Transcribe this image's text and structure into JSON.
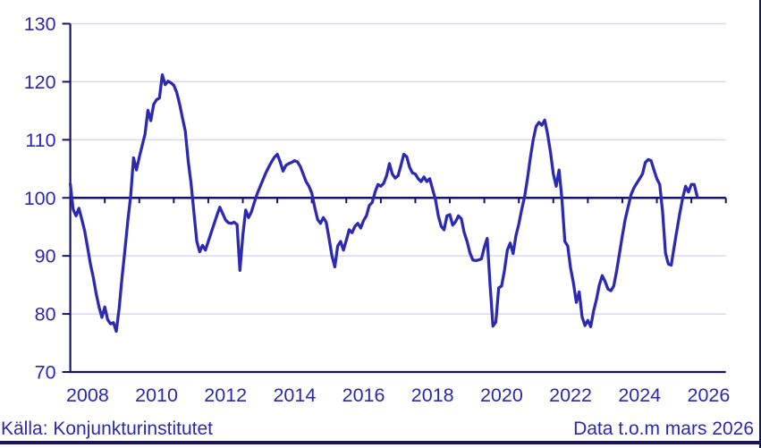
{
  "footer": {
    "source": "Källa: Konjunkturinstitutet",
    "note": "Data t.o.m mars 2026"
  },
  "chart_data": {
    "type": "line",
    "title": "",
    "xlabel": "",
    "ylabel": "",
    "grid": true,
    "legend": "none",
    "ylim": [
      70,
      130
    ],
    "y_ticks": [
      70,
      80,
      90,
      100,
      110,
      120,
      130
    ],
    "x_range_years": [
      2008,
      2027
    ],
    "x_tick_label_years": [
      2008,
      2010,
      2012,
      2014,
      2016,
      2018,
      2020,
      2022,
      2024,
      2026
    ],
    "reference_line": 100,
    "x_start": "2008-01",
    "x_step": "1 month",
    "x_end": "2026-03",
    "colors": {
      "line": "#2d2ab2",
      "axis": "#17136e",
      "reference_line": "#17136e",
      "grid": "#d8d8f0",
      "text": "#2b28b0",
      "bottom_bar": "#171366"
    },
    "series": [
      {
        "name": "",
        "values": [
          102.4,
          98.0,
          96.9,
          98.2,
          96.3,
          94.3,
          91.5,
          88.6,
          86.3,
          83.5,
          81.2,
          79.4,
          81.2,
          79.0,
          78.3,
          78.5,
          77.0,
          81.0,
          86.3,
          91.0,
          96.0,
          100.3,
          106.9,
          104.8,
          107.0,
          109.0,
          111.0,
          115.1,
          113.3,
          116.1,
          116.9,
          117.2,
          121.2,
          119.5,
          120.1,
          119.8,
          119.4,
          118.2,
          116.2,
          113.8,
          111.5,
          106.4,
          102.5,
          97.5,
          92.5,
          90.7,
          91.8,
          91.0,
          92.5,
          94.0,
          95.5,
          97.0,
          98.4,
          97.3,
          96.2,
          95.7,
          95.6,
          95.8,
          95.4,
          87.5,
          93.5,
          97.9,
          96.6,
          97.6,
          99.2,
          100.7,
          101.9,
          103.1,
          104.3,
          105.3,
          106.2,
          107.0,
          107.5,
          106.2,
          104.6,
          105.6,
          105.9,
          106.1,
          106.4,
          106.2,
          105.4,
          104.1,
          102.8,
          102.0,
          100.8,
          98.4,
          96.3,
          95.6,
          96.6,
          95.8,
          93.0,
          90.0,
          88.1,
          91.7,
          92.5,
          91.0,
          92.7,
          94.5,
          94.0,
          95.1,
          95.6,
          94.8,
          96.1,
          96.9,
          98.7,
          99.2,
          101.0,
          102.3,
          102.0,
          102.5,
          103.8,
          105.9,
          104.1,
          103.4,
          103.8,
          105.6,
          107.5,
          107.1,
          105.3,
          104.3,
          104.1,
          103.3,
          102.8,
          103.6,
          102.8,
          103.3,
          101.5,
          99.7,
          96.9,
          95.1,
          94.5,
          96.9,
          97.1,
          95.3,
          95.9,
          96.9,
          96.4,
          94.0,
          92.5,
          90.5,
          89.3,
          89.2,
          89.3,
          89.5,
          91.5,
          93.0,
          85.0,
          77.9,
          78.6,
          84.5,
          84.8,
          87.5,
          91.0,
          92.2,
          90.4,
          93.5,
          95.5,
          98.0,
          100.2,
          103.3,
          106.9,
          110.0,
          112.3,
          113.0,
          112.5,
          113.4,
          111.0,
          107.9,
          104.1,
          102.0,
          104.8,
          99.7,
          92.5,
          91.7,
          87.9,
          85.3,
          82.0,
          83.8,
          79.5,
          78.0,
          78.9,
          77.8,
          80.5,
          82.5,
          85.0,
          86.6,
          85.6,
          84.3,
          84.0,
          84.8,
          87.4,
          90.4,
          93.5,
          96.3,
          98.4,
          100.5,
          101.7,
          102.5,
          103.3,
          104.1,
          106.1,
          106.6,
          106.4,
          104.8,
          103.3,
          102.3,
          97.6,
          90.5,
          88.6,
          88.4,
          91.5,
          94.5,
          97.4,
          100.0,
          102.0,
          101.0,
          102.3,
          102.3,
          100.3
        ]
      }
    ]
  }
}
